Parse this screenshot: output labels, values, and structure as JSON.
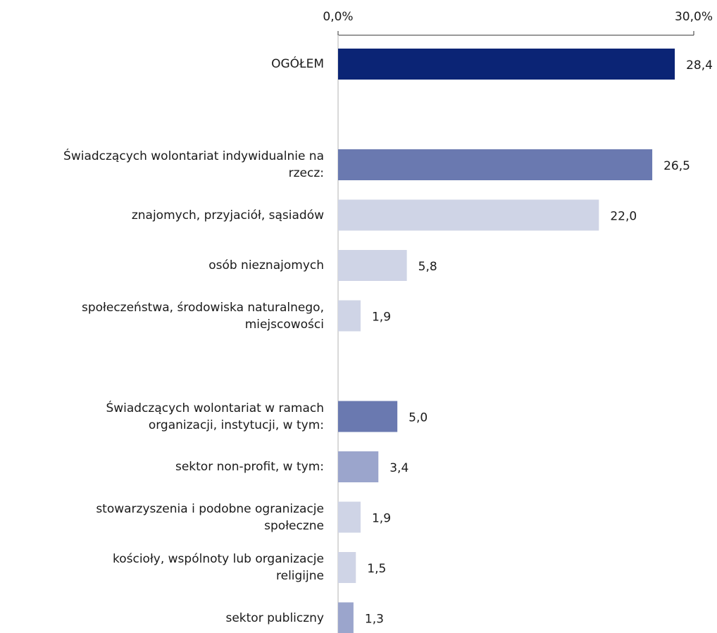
{
  "chart_data": {
    "type": "hbar",
    "categories": [
      "OGÓŁEM",
      null,
      "Świadczących wolontariat indywidualnie na \nrzecz:",
      "znajomych, przyjaciół, sąsiadów",
      "osób nieznajomych",
      "społeczeństwa, środowiska naturalnego, \nmiejscowości",
      null,
      "Świadczących wolontariat w ramach \norganizacji, instytucji,  w tym:",
      "sektor non-profit, w tym: ",
      "stowarzyszenia  i podobne ogranizacje \nspołeczne",
      "kościoły, wspólnoty lub organizacje \nreligijne",
      "sektor publiczny"
    ],
    "values": [
      28.4,
      null,
      26.5,
      22.0,
      5.8,
      1.9,
      null,
      5.0,
      3.4,
      1.9,
      1.5,
      1.3
    ],
    "value_labels": [
      "28,4",
      null,
      "26,5",
      "22,0",
      "5,8",
      "1,9",
      null,
      "5,0",
      "3,4",
      "1,9",
      "1,5",
      "1,3"
    ],
    "colors": [
      "#0b2475",
      null,
      "#6a79b0",
      "#cfd4e6",
      "#cfd4e6",
      "#cfd4e6",
      null,
      "#6a79b0",
      "#9ba5cc",
      "#cfd4e6",
      "#cfd4e6",
      "#9ba5cc"
    ],
    "xlim": [
      0,
      30
    ],
    "xticks": [
      {
        "value": 0,
        "label": "0,0%"
      },
      {
        "value": 30,
        "label": "30,0%"
      }
    ]
  }
}
